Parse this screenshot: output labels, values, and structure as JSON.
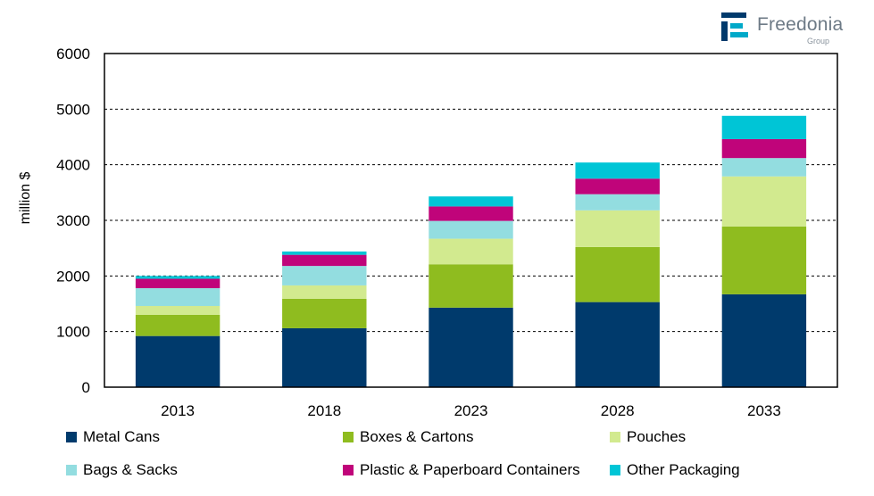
{
  "brand": {
    "name": "Freedonia",
    "sub": "Group"
  },
  "colors": {
    "metal_cans": "#003a6c",
    "boxes_cartons": "#8fbc1f",
    "pouches": "#d2ea8f",
    "bags_sacks": "#93dde0",
    "plastic_paperboard": "#c0047a",
    "other": "#00c5d6"
  },
  "chart_data": {
    "type": "bar",
    "stacked": true,
    "title": "",
    "xlabel": "",
    "ylabel": "million $",
    "ylim": [
      0,
      6000
    ],
    "yticks": [
      "0",
      "1000",
      "2000",
      "3000",
      "4000",
      "5000",
      "6000"
    ],
    "grid": "horizontal dashed",
    "legend_position": "bottom",
    "categories": [
      "2013",
      "2018",
      "2023",
      "2028",
      "2033"
    ],
    "series": [
      {
        "name": "Metal Cans",
        "color": "#003a6c",
        "values": [
          920,
          1060,
          1430,
          1530,
          1670
        ]
      },
      {
        "name": "Boxes & Cartons",
        "color": "#8fbc1f",
        "values": [
          380,
          530,
          780,
          990,
          1220
        ]
      },
      {
        "name": "Pouches",
        "color": "#d2ea8f",
        "values": [
          160,
          240,
          460,
          660,
          900
        ]
      },
      {
        "name": "Bags & Sacks",
        "color": "#93dde0",
        "values": [
          320,
          350,
          320,
          290,
          330
        ]
      },
      {
        "name": "Plastic & Paperboard Containers",
        "color": "#c0047a",
        "values": [
          170,
          200,
          260,
          280,
          340
        ]
      },
      {
        "name": "Other Packaging",
        "color": "#00c5d6",
        "values": [
          50,
          60,
          180,
          290,
          420
        ]
      }
    ]
  }
}
